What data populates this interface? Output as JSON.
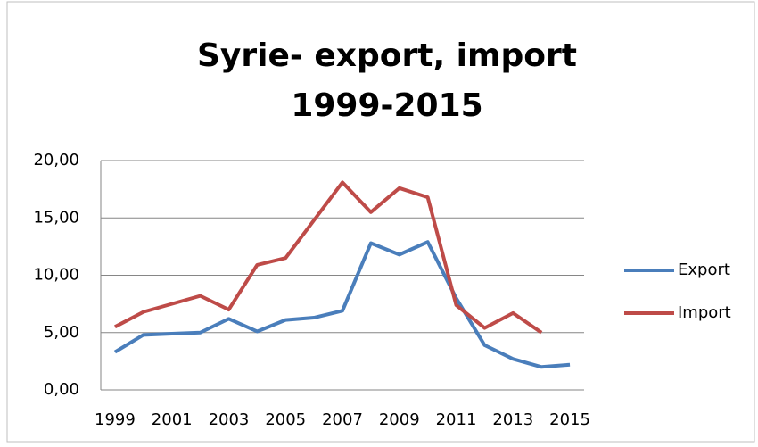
{
  "chart_data": {
    "type": "line",
    "title": [
      "Syrie- export, import",
      "1999-2015"
    ],
    "x": [
      1999,
      2000,
      2001,
      2002,
      2003,
      2004,
      2005,
      2006,
      2007,
      2008,
      2009,
      2010,
      2011,
      2012,
      2013,
      2014,
      2015
    ],
    "xlim": [
      1998.5,
      2015.5
    ],
    "xticks": [
      1999,
      2001,
      2003,
      2005,
      2007,
      2009,
      2011,
      2013,
      2015
    ],
    "ylim": [
      0,
      20
    ],
    "yticks": [
      {
        "value": 0,
        "label": "0,00"
      },
      {
        "value": 5,
        "label": "5,00"
      },
      {
        "value": 10,
        "label": "10,00"
      },
      {
        "value": 15,
        "label": "15,00"
      },
      {
        "value": 20,
        "label": "20,00"
      }
    ],
    "grid": true,
    "legend": "right",
    "series": [
      {
        "name": "Export",
        "color": "#4a7ebb",
        "values": [
          3.3,
          4.8,
          4.9,
          5.0,
          6.2,
          5.1,
          6.1,
          6.3,
          6.9,
          12.8,
          11.8,
          12.9,
          8.0,
          3.9,
          2.7,
          2.0,
          2.2
        ]
      },
      {
        "name": "Import",
        "color": "#be4b48",
        "values": [
          5.5,
          6.8,
          7.5,
          8.2,
          7.0,
          10.9,
          11.5,
          14.8,
          18.1,
          15.5,
          17.6,
          16.8,
          7.4,
          5.4,
          6.7,
          5.0,
          null
        ]
      }
    ]
  }
}
